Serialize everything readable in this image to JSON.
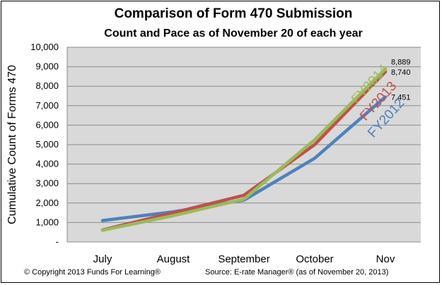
{
  "header": {
    "title": "Comparison of Form 470 Submission",
    "subtitle": "Count and Pace as of November 20 of each year"
  },
  "footer": {
    "copyright": "© Copyright 2013 Funds For Learning®",
    "source": "Source: E-rate Manager® (as of November 20, 2013)"
  },
  "colors": {
    "plot_background": "#d9d9d9",
    "gridline": "#8c8c8c",
    "FY2012": "#4f81bd",
    "FY2013": "#c0504d",
    "FY2014": "#9bbb59"
  },
  "chart_data": {
    "type": "line",
    "title": "Comparison of Form 470 Submission",
    "subtitle": "Count and Pace as of November 20 of each year",
    "ylabel": "Cumulative Count of Forms 470",
    "xlabel": "",
    "categories": [
      "July",
      "August",
      "September",
      "October",
      "Nov"
    ],
    "ylim": [
      0,
      10000
    ],
    "yticks": [
      0,
      1000,
      2000,
      3000,
      4000,
      5000,
      6000,
      7000,
      8000,
      9000,
      10000
    ],
    "ytick_labels": [
      "-",
      "1,000",
      "2,000",
      "3,000",
      "4,000",
      "5,000",
      "6,000",
      "7,000",
      "8,000",
      "9,000",
      "10,000"
    ],
    "grid": true,
    "legend": "none (series labeled on lines)",
    "series": [
      {
        "name": "FY2012",
        "values": [
          1100,
          1550,
          2150,
          4300,
          7451
        ],
        "end_label": "7,451"
      },
      {
        "name": "FY2013",
        "values": [
          620,
          1500,
          2400,
          5000,
          8740
        ],
        "end_label": "8,740"
      },
      {
        "name": "FY2014",
        "values": [
          600,
          1350,
          2200,
          5250,
          8889
        ],
        "end_label": "8,889"
      }
    ]
  }
}
